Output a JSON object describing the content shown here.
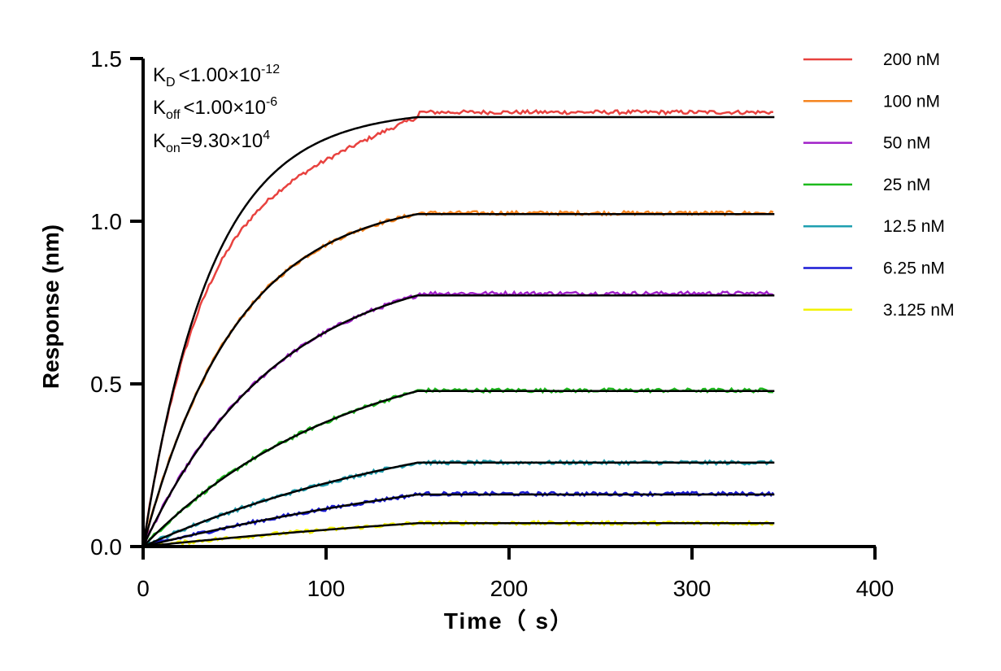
{
  "chart_data": {
    "type": "line",
    "xlabel": "Time（ s）",
    "ylabel": "Response (nm)",
    "xlim": [
      0,
      400
    ],
    "ylim": [
      0,
      1.5
    ],
    "xticks": [
      0,
      100,
      200,
      300,
      400
    ],
    "xtick_labels": [
      "0",
      "100",
      "200",
      "300",
      "400"
    ],
    "yticks": [
      0,
      0.5,
      1.0,
      1.5
    ],
    "ytick_labels": [
      "0.0",
      "0.5",
      "1.0",
      "1.5"
    ],
    "grid": false,
    "legend_position": "right",
    "association_end": 150,
    "time_end": 345,
    "annotations": {
      "kd": {
        "base": "K",
        "sub": "D",
        "rel": "<",
        "value": "1.00×10",
        "exp": "-12"
      },
      "koff": {
        "base": "K",
        "sub": "off",
        "rel": "<",
        "value": "1.00×10",
        "exp": "-6"
      },
      "kon": {
        "base": "K",
        "sub": "on",
        "rel": "=",
        "value": "9.30×10",
        "exp": "4"
      }
    },
    "fit_color": "#000000",
    "series": [
      {
        "name": "200 nM",
        "color": "#e8423f",
        "plateau": 1.32,
        "observed_plateau": 1.335
      },
      {
        "name": "100 nM",
        "color": "#f5841f",
        "plateau": 1.022,
        "observed_plateau": 1.025
      },
      {
        "name": "50 nM",
        "color": "#a020c8",
        "plateau": 0.772,
        "observed_plateau": 0.778
      },
      {
        "name": "25 nM",
        "color": "#1dba1d",
        "plateau": 0.478,
        "observed_plateau": 0.48
      },
      {
        "name": "12.5 nM",
        "color": "#1e9fb0",
        "plateau": 0.258,
        "observed_plateau": 0.258
      },
      {
        "name": "6.25 nM",
        "color": "#1a1ad6",
        "plateau": 0.16,
        "observed_plateau": 0.162
      },
      {
        "name": "3.125 nM",
        "color": "#f2f200",
        "plateau": 0.072,
        "observed_plateau": 0.072
      }
    ]
  }
}
